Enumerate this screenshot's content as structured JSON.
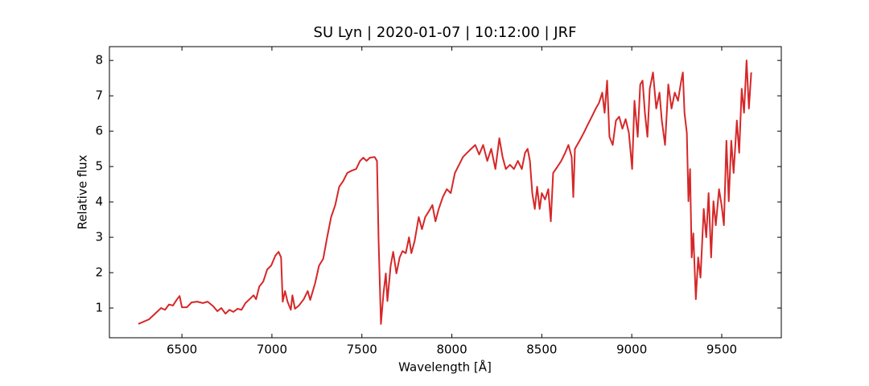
{
  "chart_data": {
    "type": "line",
    "title": "SU Lyn | 2020-01-07 | 10:12:00 | JRF",
    "xlabel": "Wavelength [Å]",
    "ylabel": "Relative flux",
    "color": "#d62728",
    "xlim": [
      6097,
      9831
    ],
    "ylim": [
      0.16,
      8.39
    ],
    "xticks": [
      6500,
      7000,
      7500,
      8000,
      8500,
      9000,
      9500
    ],
    "yticks": [
      1,
      2,
      3,
      4,
      5,
      6,
      7,
      8
    ],
    "x": [
      6258,
      6317,
      6361,
      6384,
      6406,
      6428,
      6450,
      6473,
      6487,
      6500,
      6527,
      6554,
      6585,
      6616,
      6643,
      6674,
      6697,
      6719,
      6742,
      6764,
      6786,
      6809,
      6831,
      6853,
      6876,
      6898,
      6912,
      6930,
      6952,
      6974,
      6996,
      7019,
      7037,
      7051,
      7060,
      7073,
      7087,
      7105,
      7114,
      7128,
      7150,
      7177,
      7199,
      7213,
      7240,
      7262,
      7285,
      7307,
      7329,
      7352,
      7374,
      7396,
      7419,
      7446,
      7468,
      7490,
      7508,
      7526,
      7544,
      7571,
      7584,
      7593,
      7606,
      7620,
      7633,
      7642,
      7660,
      7674,
      7692,
      7710,
      7726,
      7744,
      7762,
      7775,
      7793,
      7816,
      7834,
      7852,
      7874,
      7892,
      7909,
      7927,
      7950,
      7972,
      7994,
      8017,
      8040,
      8062,
      8085,
      8107,
      8130,
      8152,
      8174,
      8197,
      8219,
      8242,
      8264,
      8282,
      8300,
      8323,
      8345,
      8367,
      8389,
      8407,
      8421,
      8434,
      8447,
      8461,
      8474,
      8488,
      8500,
      8518,
      8536,
      8550,
      8563,
      8585,
      8608,
      8630,
      8648,
      8666,
      8675,
      8684,
      8710,
      8733,
      8755,
      8778,
      8800,
      8818,
      8836,
      8849,
      8863,
      8876,
      8894,
      8912,
      8930,
      8948,
      8966,
      8984,
      9002,
      9015,
      9033,
      9047,
      9060,
      9073,
      9087,
      9100,
      9118,
      9136,
      9154,
      9167,
      9185,
      9203,
      9221,
      9239,
      9257,
      9275,
      9284,
      9293,
      9306,
      9315,
      9324,
      9333,
      9342,
      9356,
      9369,
      9382,
      9400,
      9414,
      9427,
      9441,
      9454,
      9467,
      9485,
      9499,
      9512,
      9526,
      9539,
      9553,
      9566,
      9584,
      9597,
      9611,
      9624,
      9638,
      9651,
      9664
    ],
    "values": [
      0.55,
      0.68,
      0.89,
      1.0,
      0.95,
      1.1,
      1.07,
      1.25,
      1.34,
      1.02,
      1.02,
      1.16,
      1.18,
      1.14,
      1.18,
      1.05,
      0.91,
      1.0,
      0.84,
      0.95,
      0.89,
      0.98,
      0.95,
      1.14,
      1.25,
      1.36,
      1.25,
      1.61,
      1.75,
      2.09,
      2.2,
      2.48,
      2.59,
      2.43,
      1.18,
      1.48,
      1.18,
      0.95,
      1.36,
      0.98,
      1.07,
      1.25,
      1.48,
      1.23,
      1.7,
      2.2,
      2.39,
      3.0,
      3.57,
      3.91,
      4.43,
      4.59,
      4.82,
      4.89,
      4.93,
      5.16,
      5.25,
      5.16,
      5.25,
      5.27,
      5.16,
      2.89,
      0.55,
      1.41,
      1.98,
      1.2,
      2.2,
      2.59,
      1.98,
      2.43,
      2.61,
      2.55,
      3.0,
      2.55,
      2.89,
      3.57,
      3.23,
      3.57,
      3.75,
      3.91,
      3.45,
      3.8,
      4.14,
      4.36,
      4.25,
      4.82,
      5.05,
      5.27,
      5.39,
      5.5,
      5.61,
      5.34,
      5.61,
      5.16,
      5.5,
      4.93,
      5.8,
      5.27,
      4.93,
      5.05,
      4.93,
      5.16,
      4.93,
      5.39,
      5.5,
      5.16,
      4.25,
      3.8,
      4.43,
      3.8,
      4.25,
      4.07,
      4.36,
      3.45,
      4.82,
      4.98,
      5.16,
      5.39,
      5.61,
      5.27,
      4.14,
      5.5,
      5.73,
      5.95,
      6.18,
      6.41,
      6.64,
      6.8,
      7.09,
      6.52,
      7.43,
      5.84,
      5.61,
      6.3,
      6.41,
      6.07,
      6.34,
      5.95,
      4.93,
      6.86,
      5.84,
      7.32,
      7.43,
      6.52,
      5.84,
      7.2,
      7.66,
      6.64,
      7.09,
      6.3,
      5.61,
      7.32,
      6.64,
      7.09,
      6.86,
      7.43,
      7.66,
      6.52,
      5.95,
      4.02,
      4.93,
      2.43,
      3.11,
      1.25,
      2.43,
      1.86,
      3.8,
      3.0,
      4.25,
      2.43,
      4.02,
      3.34,
      4.36,
      3.91,
      3.34,
      5.73,
      4.02,
      5.73,
      4.82,
      6.3,
      5.39,
      7.2,
      6.52,
      8.0,
      6.64,
      7.66
    ]
  }
}
